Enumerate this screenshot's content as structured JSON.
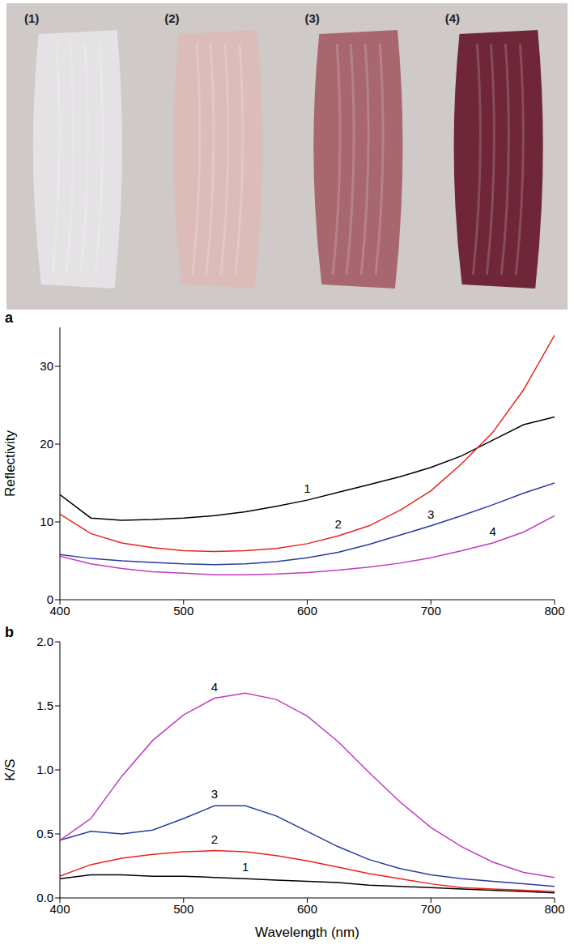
{
  "photo": {
    "labels": [
      "(1)",
      "(2)",
      "(3)",
      "(4)"
    ],
    "colors": [
      "#e4e2e4",
      "#dcbcb8",
      "#a8666e",
      "#6e2638"
    ]
  },
  "chart_data": [
    {
      "type": "line",
      "panel": "a",
      "y_label": "Reflectivity",
      "x": [
        400,
        425,
        450,
        475,
        500,
        525,
        550,
        575,
        600,
        625,
        650,
        675,
        700,
        725,
        750,
        775,
        800
      ],
      "xlim": [
        400,
        800
      ],
      "xticks": [
        400,
        500,
        600,
        700,
        800
      ],
      "ylim": [
        0,
        35
      ],
      "yticks": [
        0,
        10,
        20,
        30
      ],
      "series": [
        {
          "name": "1",
          "color": "#000000",
          "values": [
            13.5,
            10.5,
            10.2,
            10.3,
            10.5,
            10.8,
            11.3,
            12,
            12.8,
            13.8,
            14.8,
            15.8,
            17,
            18.5,
            20.5,
            22.5,
            23.5
          ]
        },
        {
          "name": "2",
          "color": "#e8231c",
          "values": [
            11,
            8.5,
            7.3,
            6.7,
            6.3,
            6.2,
            6.3,
            6.6,
            7.2,
            8.2,
            9.5,
            11.5,
            14,
            17.5,
            21.5,
            27,
            34
          ]
        },
        {
          "name": "3",
          "color": "#2a3b9c",
          "values": [
            5.8,
            5.3,
            5.0,
            4.8,
            4.6,
            4.5,
            4.6,
            4.9,
            5.4,
            6.1,
            7.1,
            8.3,
            9.5,
            10.8,
            12.2,
            13.7,
            15
          ]
        },
        {
          "name": "4",
          "color": "#c03cc0",
          "values": [
            5.6,
            4.6,
            4,
            3.6,
            3.4,
            3.2,
            3.2,
            3.3,
            3.5,
            3.8,
            4.2,
            4.7,
            5.4,
            6.3,
            7.3,
            8.7,
            10.8
          ]
        }
      ]
    },
    {
      "type": "line",
      "panel": "b",
      "y_label": "K/S",
      "x_label": "Wavelength (nm)",
      "x": [
        400,
        425,
        450,
        475,
        500,
        525,
        550,
        575,
        600,
        625,
        650,
        675,
        700,
        725,
        750,
        775,
        800
      ],
      "xlim": [
        400,
        800
      ],
      "xticks": [
        400,
        500,
        600,
        700,
        800
      ],
      "ylim": [
        0,
        2
      ],
      "yticks": [
        {
          "value": 0,
          "label": "0.0"
        },
        {
          "value": 0.5,
          "label": "0.5"
        },
        {
          "value": 1,
          "label": "1.0"
        },
        {
          "value": 1.5,
          "label": "1.5"
        },
        {
          "value": 2,
          "label": "2.0"
        }
      ],
      "series": [
        {
          "name": "1",
          "color": "#000000",
          "values": [
            0.15,
            0.18,
            0.18,
            0.17,
            0.17,
            0.16,
            0.15,
            0.14,
            0.13,
            0.12,
            0.1,
            0.09,
            0.08,
            0.07,
            0.06,
            0.05,
            0.04
          ]
        },
        {
          "name": "2",
          "color": "#e8231c",
          "values": [
            0.17,
            0.26,
            0.31,
            0.34,
            0.36,
            0.37,
            0.36,
            0.33,
            0.29,
            0.24,
            0.19,
            0.15,
            0.11,
            0.08,
            0.07,
            0.06,
            0.05
          ]
        },
        {
          "name": "3",
          "color": "#2a3b9c",
          "values": [
            0.45,
            0.52,
            0.5,
            0.53,
            0.62,
            0.72,
            0.72,
            0.64,
            0.52,
            0.4,
            0.3,
            0.23,
            0.18,
            0.15,
            0.13,
            0.11,
            0.09
          ]
        },
        {
          "name": "4",
          "color": "#c03cc0",
          "values": [
            0.45,
            0.62,
            0.95,
            1.23,
            1.43,
            1.56,
            1.6,
            1.55,
            1.42,
            1.22,
            0.98,
            0.75,
            0.55,
            0.4,
            0.28,
            0.2,
            0.16
          ]
        }
      ]
    }
  ]
}
